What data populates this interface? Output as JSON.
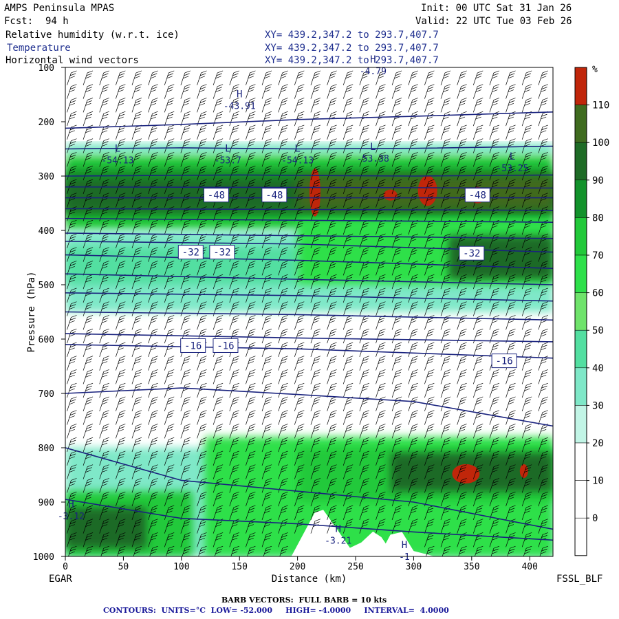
{
  "header": {
    "model": "AMPS Peninsula MPAS",
    "fcst_label": "Fcst:",
    "fcst_value": "94 h",
    "init": "Init: 00 UTC Sat 31 Jan 26",
    "valid": "Valid: 22 UTC Tue 03 Feb 26",
    "fields": [
      {
        "name": "Relative humidity (w.r.t. ice)",
        "xy": "XY= 439.2,347.2 to 293.7,407.7",
        "color": "#000000"
      },
      {
        "name": "Temperature",
        "xy": "XY= 439.2,347.2 to 293.7,407.7",
        "color": "#1f2f8f"
      },
      {
        "name": "Horizontal wind vectors",
        "xy": "XY= 439.2,347.2 to 293.7,407.7",
        "color": "#000000"
      }
    ]
  },
  "axes": {
    "ylabel": "Pressure (hPa)",
    "xlabel": "Distance (km)",
    "left_station": "EGAR",
    "right_station": "FSSL_BLF",
    "xticks": [
      0,
      50,
      100,
      150,
      200,
      250,
      300,
      350,
      400
    ],
    "yticks": [
      100,
      200,
      300,
      400,
      500,
      600,
      700,
      800,
      900,
      1000
    ]
  },
  "colorbar": {
    "unit": "%",
    "labels": [
      "110",
      "100",
      "90",
      "80",
      "70",
      "60",
      "50",
      "40",
      "30",
      "20",
      "10",
      "0"
    ],
    "colors": [
      "#c0260a",
      "#3f6b1f",
      "#1e6b26",
      "#12922b",
      "#22c93a",
      "#2ee04a",
      "#6fe36b",
      "#53dfa1",
      "#7fe8c8",
      "#c2f5e6",
      "#ffffff",
      "#ffffff",
      "#ffffff",
      "#ffffff"
    ]
  },
  "footer": {
    "barb": "BARB VECTORS:  FULL BARB = 10 kts",
    "contours": "CONTOURS:  UNITS=°C  LOW= -52.000     HIGH= -4.0000     INTERVAL=  4.0000"
  },
  "chart_data": {
    "type": "cross-section",
    "title": "",
    "xlabel": "Distance (km)",
    "ylabel": "Pressure (hPa)",
    "xlim": [
      0,
      420
    ],
    "ylim": [
      1000,
      100
    ],
    "fill_field": "Relative humidity (w.r.t. ice)",
    "fill_levels": [
      0,
      10,
      20,
      30,
      40,
      50,
      60,
      70,
      80,
      90,
      100,
      110
    ],
    "contour_field": "Temperature",
    "contour_units": "°C",
    "contour_low": -52,
    "contour_high": -4,
    "contour_interval": 4,
    "contour_labels": [
      {
        "text": "-48",
        "x": 130,
        "p": 335
      },
      {
        "text": "-48",
        "x": 180,
        "p": 335
      },
      {
        "text": "-48",
        "x": 355,
        "p": 335
      },
      {
        "text": "-32",
        "x": 108,
        "p": 440
      },
      {
        "text": "-32",
        "x": 135,
        "p": 440
      },
      {
        "text": "-32",
        "x": 350,
        "p": 442
      },
      {
        "text": "-16",
        "x": 110,
        "p": 612
      },
      {
        "text": "-16",
        "x": 138,
        "p": 612
      },
      {
        "text": "-16",
        "x": 378,
        "p": 640
      }
    ],
    "extrema": [
      {
        "kind": "H",
        "value": "-43.91",
        "x": 150,
        "p": 165
      },
      {
        "kind": "L",
        "value": "-54.13",
        "x": 45,
        "p": 265
      },
      {
        "kind": "L",
        "value": "-53.7",
        "x": 140,
        "p": 265
      },
      {
        "kind": "L",
        "value": "-54.13",
        "x": 200,
        "p": 265
      },
      {
        "kind": "L",
        "value": "-53.38",
        "x": 265,
        "p": 262
      },
      {
        "kind": "L",
        "value": "-53.25",
        "x": 385,
        "p": 280
      },
      {
        "kind": "H",
        "value": "-3.12",
        "x": 5,
        "p": 920
      },
      {
        "kind": "H",
        "value": "-3.21",
        "x": 235,
        "p": 965
      },
      {
        "kind": "H",
        "value": "-1",
        "x": 292,
        "p": 995
      },
      {
        "kind": "H",
        "value": "-4.79",
        "x": 265,
        "p": 101
      }
    ],
    "wind_barb_full": "10 kts"
  }
}
